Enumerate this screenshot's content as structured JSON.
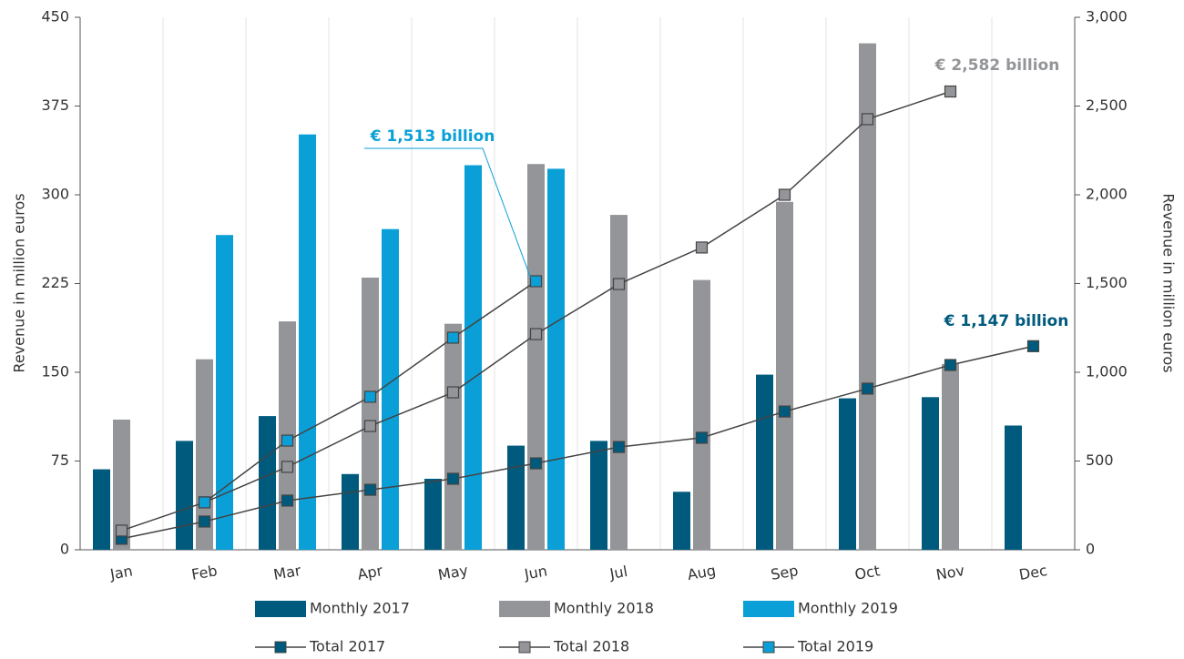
{
  "chart_data": {
    "type": "bar",
    "categories": [
      "Jan",
      "Feb",
      "Mar",
      "Apr",
      "May",
      "Jun",
      "Jul",
      "Aug",
      "Sep",
      "Oct",
      "Nov",
      "Dec"
    ],
    "ylabel": "Revenue in million euros",
    "y2label": "Revenue in million euros",
    "ylim": [
      0,
      450
    ],
    "yticks": [
      0,
      75,
      150,
      225,
      300,
      375,
      450
    ],
    "y2lim": [
      0,
      3000
    ],
    "y2ticks": [
      0,
      500,
      {
        "value": 1000,
        "label": "1,000"
      },
      {
        "value": 1500,
        "label": "1,500"
      },
      {
        "value": 2000,
        "label": "2,000"
      },
      {
        "value": 2500,
        "label": "2,500"
      },
      {
        "value": 3000,
        "label": "3,000"
      }
    ],
    "series": [
      {
        "name": "Monthly 2017",
        "type": "bar",
        "color": "#005a7d",
        "values": [
          68,
          92,
          113,
          64,
          60,
          88,
          92,
          49,
          148,
          128,
          129,
          105
        ]
      },
      {
        "name": "Monthly 2018",
        "type": "bar",
        "color": "#939598",
        "values": [
          110,
          161,
          193,
          230,
          191,
          326,
          283,
          228,
          294,
          428,
          157,
          null
        ]
      },
      {
        "name": "Monthly 2019",
        "type": "bar",
        "color": "#0aa0d7",
        "values": [
          null,
          266,
          351,
          271,
          325,
          322,
          null,
          null,
          null,
          null,
          null,
          null
        ]
      },
      {
        "name": "Total 2017",
        "type": "line",
        "axis": "y2",
        "color": "#005a7d",
        "values": [
          62,
          159,
          277,
          338,
          400,
          487,
          579,
          631,
          779,
          908,
          1041,
          1147
        ]
      },
      {
        "name": "Total 2018",
        "type": "line",
        "axis": "y2",
        "color": "#939598",
        "values": [
          108,
          267,
          467,
          697,
          887,
          1215,
          1497,
          1703,
          2000,
          2426,
          2582,
          null
        ]
      },
      {
        "name": "Total 2019",
        "type": "line",
        "axis": "y2",
        "color": "#0aa0d7",
        "values": [
          null,
          267,
          615,
          862,
          1195,
          1513,
          null,
          null,
          null,
          null,
          null,
          null
        ]
      }
    ],
    "annotations": [
      {
        "text": "€ 1,513 billion",
        "color": "#0aa0d7"
      },
      {
        "text": "€ 2,582 billion",
        "color": "#939598"
      },
      {
        "text": "€ 1,147 billion",
        "color": "#005a7d"
      }
    ]
  }
}
